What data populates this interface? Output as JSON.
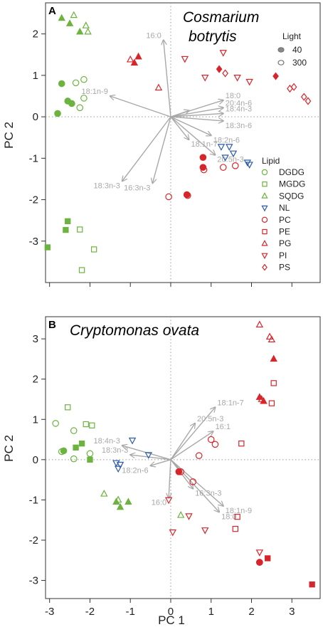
{
  "x_axis_title": "PC 1",
  "y_axis_title": "PC 2",
  "colors": {
    "green": "#6cb33f",
    "blue": "#2b5aa8",
    "red": "#d7262b",
    "arrow": "#a8a8a8",
    "grid": "#999999"
  },
  "light_legend": {
    "title": "Light",
    "items": [
      {
        "label": "40",
        "filled": true
      },
      {
        "label": "300",
        "filled": false
      }
    ]
  },
  "lipid_legend": {
    "title": "Lipid",
    "items": [
      {
        "label": "DGDG",
        "shape": "circle",
        "color": "green"
      },
      {
        "label": "MGDG",
        "shape": "square",
        "color": "green"
      },
      {
        "label": "SQDG",
        "shape": "triangle",
        "color": "green"
      },
      {
        "label": "NL",
        "shape": "itriangle",
        "color": "blue"
      },
      {
        "label": "PC",
        "shape": "circle",
        "color": "red"
      },
      {
        "label": "PE",
        "shape": "square",
        "color": "red"
      },
      {
        "label": "PG",
        "shape": "triangle",
        "color": "red"
      },
      {
        "label": "PI",
        "shape": "itriangle",
        "color": "red"
      },
      {
        "label": "PS",
        "shape": "diamond",
        "color": "red"
      }
    ]
  },
  "chart_data": [
    {
      "type": "scatter",
      "panel": "A",
      "species": [
        "Cosmarium",
        "botrytis"
      ],
      "xlim": [
        -3.1,
        3.7
      ],
      "ylim": [
        -4.0,
        2.75
      ],
      "xticks": [],
      "yticks": [
        -3,
        -2,
        -1,
        0,
        1,
        2
      ],
      "loadings": [
        {
          "label": "16:0",
          "x": -0.18,
          "y": 1.85
        },
        {
          "label": "18:1n-9",
          "x": -1.5,
          "y": 0.5
        },
        {
          "label": "18:0",
          "x": 1.3,
          "y": 0.4
        },
        {
          "label": "20:4n-6",
          "x": 1.3,
          "y": 0.22
        },
        {
          "label": "18:4n-3",
          "x": 1.3,
          "y": 0.08
        },
        {
          "label": "18:3n-6",
          "x": 1.3,
          "y": -0.1
        },
        {
          "label": "18:2n-6",
          "x": 1.0,
          "y": -0.45
        },
        {
          "label": "20:5n-3",
          "x": 1.1,
          "y": -0.92
        },
        {
          "label": "18:1n-7",
          "x": 0.45,
          "y": -0.55
        },
        {
          "label": "18:3n-3",
          "x": -1.2,
          "y": -1.55
        },
        {
          "label": "16:3n-3",
          "x": -0.45,
          "y": -1.6
        },
        {
          "label": "",
          "x": 0.45,
          "y": 0.15
        }
      ],
      "points": [
        {
          "shape": "triangle",
          "color": "green",
          "filled": true,
          "x": -2.7,
          "y": 2.38
        },
        {
          "shape": "triangle",
          "color": "green",
          "filled": true,
          "x": -2.5,
          "y": 2.25
        },
        {
          "shape": "triangle",
          "color": "green",
          "filled": true,
          "x": -2.25,
          "y": 2.05
        },
        {
          "shape": "triangle",
          "color": "green",
          "filled": false,
          "x": -2.4,
          "y": 2.45
        },
        {
          "shape": "triangle",
          "color": "green",
          "filled": false,
          "x": -2.1,
          "y": 2.2
        },
        {
          "shape": "triangle",
          "color": "green",
          "filled": false,
          "x": -2.05,
          "y": 2.05
        },
        {
          "shape": "circle",
          "color": "green",
          "filled": true,
          "x": -2.7,
          "y": 0.8
        },
        {
          "shape": "circle",
          "color": "green",
          "filled": true,
          "x": -2.55,
          "y": 0.38
        },
        {
          "shape": "circle",
          "color": "green",
          "filled": true,
          "x": -2.8,
          "y": 0.08
        },
        {
          "shape": "circle",
          "color": "green",
          "filled": true,
          "x": -2.45,
          "y": 0.32
        },
        {
          "shape": "circle",
          "color": "green",
          "filled": false,
          "x": -2.35,
          "y": 0.82
        },
        {
          "shape": "circle",
          "color": "green",
          "filled": false,
          "x": -2.15,
          "y": 0.9
        },
        {
          "shape": "circle",
          "color": "green",
          "filled": false,
          "x": -2.15,
          "y": 0.45
        },
        {
          "shape": "circle",
          "color": "green",
          "filled": false,
          "x": -2.25,
          "y": 0.22
        },
        {
          "shape": "square",
          "color": "green",
          "filled": true,
          "x": -2.55,
          "y": -2.52
        },
        {
          "shape": "square",
          "color": "green",
          "filled": true,
          "x": -2.6,
          "y": -2.73
        },
        {
          "shape": "square",
          "color": "green",
          "filled": true,
          "x": -3.05,
          "y": -3.15
        },
        {
          "shape": "square",
          "color": "green",
          "filled": false,
          "x": -2.25,
          "y": -2.72
        },
        {
          "shape": "square",
          "color": "green",
          "filled": false,
          "x": -1.9,
          "y": -3.2
        },
        {
          "shape": "square",
          "color": "green",
          "filled": false,
          "x": -2.2,
          "y": -3.7
        },
        {
          "shape": "triangle",
          "color": "red",
          "filled": true,
          "x": -0.9,
          "y": 1.3
        },
        {
          "shape": "triangle",
          "color": "red",
          "filled": true,
          "x": -0.8,
          "y": 1.45
        },
        {
          "shape": "triangle",
          "color": "red",
          "filled": false,
          "x": -1.0,
          "y": 1.38
        },
        {
          "shape": "triangle",
          "color": "red",
          "filled": false,
          "x": -0.3,
          "y": 0.7
        },
        {
          "shape": "itriangle",
          "color": "red",
          "filled": false,
          "x": 0.35,
          "y": 1.4
        },
        {
          "shape": "itriangle",
          "color": "red",
          "filled": false,
          "x": 0.85,
          "y": 0.95
        },
        {
          "shape": "itriangle",
          "color": "red",
          "filled": false,
          "x": 1.3,
          "y": 1.55
        },
        {
          "shape": "itriangle",
          "color": "red",
          "filled": false,
          "x": 1.65,
          "y": 0.95
        },
        {
          "shape": "itriangle",
          "color": "red",
          "filled": false,
          "x": 1.95,
          "y": 0.85
        },
        {
          "shape": "diamond",
          "color": "red",
          "filled": true,
          "x": 1.2,
          "y": 1.15
        },
        {
          "shape": "diamond",
          "color": "red",
          "filled": false,
          "x": 1.35,
          "y": 1.05
        },
        {
          "shape": "diamond",
          "color": "red",
          "filled": true,
          "x": 2.6,
          "y": 0.98
        },
        {
          "shape": "diamond",
          "color": "red",
          "filled": false,
          "x": 2.95,
          "y": 0.68
        },
        {
          "shape": "diamond",
          "color": "red",
          "filled": false,
          "x": 3.05,
          "y": 0.72
        },
        {
          "shape": "diamond",
          "color": "red",
          "filled": false,
          "x": 3.3,
          "y": 0.48
        },
        {
          "shape": "diamond",
          "color": "red",
          "filled": false,
          "x": 3.4,
          "y": 0.38
        },
        {
          "shape": "itriangle",
          "color": "blue",
          "filled": false,
          "x": 1.25,
          "y": -0.72
        },
        {
          "shape": "itriangle",
          "color": "blue",
          "filled": false,
          "x": 1.45,
          "y": -0.72
        },
        {
          "shape": "itriangle",
          "color": "blue",
          "filled": false,
          "x": 1.55,
          "y": -0.88
        },
        {
          "shape": "itriangle",
          "color": "blue",
          "filled": false,
          "x": 1.35,
          "y": -0.98
        },
        {
          "shape": "itriangle",
          "color": "blue",
          "filled": false,
          "x": 1.9,
          "y": -1.1
        },
        {
          "shape": "itriangle",
          "color": "blue",
          "filled": false,
          "x": 1.95,
          "y": -1.15
        },
        {
          "shape": "circle",
          "color": "red",
          "filled": true,
          "x": 0.8,
          "y": -0.98
        },
        {
          "shape": "circle",
          "color": "red",
          "filled": true,
          "x": 0.8,
          "y": -1.22
        },
        {
          "shape": "circle",
          "color": "red",
          "filled": false,
          "x": 0.82,
          "y": -1.28
        },
        {
          "shape": "circle",
          "color": "red",
          "filled": false,
          "x": 1.3,
          "y": -1.22
        },
        {
          "shape": "circle",
          "color": "red",
          "filled": false,
          "x": 1.6,
          "y": -1.18
        },
        {
          "shape": "circle",
          "color": "red",
          "filled": true,
          "x": 0.4,
          "y": -1.88
        },
        {
          "shape": "circle",
          "color": "red",
          "filled": false,
          "x": 0.42,
          "y": -1.9
        },
        {
          "shape": "circle",
          "color": "red",
          "filled": false,
          "x": -0.05,
          "y": -1.93
        }
      ]
    },
    {
      "type": "scatter",
      "panel": "B",
      "species": [
        "Cryptomonas ovata"
      ],
      "xlim": [
        -3.1,
        3.7
      ],
      "ylim": [
        -3.45,
        3.55
      ],
      "xticks": [
        -3,
        -2,
        -1,
        0,
        1,
        2,
        3
      ],
      "yticks": [
        -3,
        -2,
        -1,
        0,
        1,
        2,
        3
      ],
      "loadings": [
        {
          "label": "18:1n-7",
          "x": 1.1,
          "y": 1.3
        },
        {
          "label": "20:5n-3",
          "x": 0.6,
          "y": 0.9
        },
        {
          "label": "16:1",
          "x": 1.05,
          "y": 0.7
        },
        {
          "label": "18:4n-3",
          "x": -1.2,
          "y": 0.35
        },
        {
          "label": "18:3n-3",
          "x": -1.0,
          "y": 0.12
        },
        {
          "label": "18:2n-6",
          "x": -0.5,
          "y": -0.15
        },
        {
          "label": "16:3n-3",
          "x": 0.55,
          "y": -0.72
        },
        {
          "label": "16:0",
          "x": -0.05,
          "y": -0.95
        },
        {
          "label": "18:0",
          "x": 1.2,
          "y": -1.3
        },
        {
          "label": "18:1n-9",
          "x": 1.3,
          "y": -1.15
        }
      ],
      "points": [
        {
          "shape": "circle",
          "color": "green",
          "filled": false,
          "x": -2.85,
          "y": 0.9
        },
        {
          "shape": "circle",
          "color": "green",
          "filled": false,
          "x": -2.4,
          "y": 0.72
        },
        {
          "shape": "circle",
          "color": "green",
          "filled": true,
          "x": -2.65,
          "y": 0.22
        },
        {
          "shape": "circle",
          "color": "green",
          "filled": false,
          "x": -2.7,
          "y": 0.2
        },
        {
          "shape": "circle",
          "color": "green",
          "filled": false,
          "x": -2.4,
          "y": 0.02
        },
        {
          "shape": "circle",
          "color": "green",
          "filled": false,
          "x": -2.0,
          "y": 0.15
        },
        {
          "shape": "square",
          "color": "green",
          "filled": false,
          "x": -2.55,
          "y": 1.3
        },
        {
          "shape": "square",
          "color": "green",
          "filled": false,
          "x": -2.1,
          "y": 0.88
        },
        {
          "shape": "square",
          "color": "green",
          "filled": false,
          "x": -1.95,
          "y": 0.85
        },
        {
          "shape": "square",
          "color": "green",
          "filled": true,
          "x": -2.35,
          "y": 0.3
        },
        {
          "shape": "square",
          "color": "green",
          "filled": true,
          "x": -2.2,
          "y": 0.4
        },
        {
          "shape": "square",
          "color": "green",
          "filled": true,
          "x": -2.0,
          "y": 0.0
        },
        {
          "shape": "triangle",
          "color": "green",
          "filled": false,
          "x": -1.65,
          "y": -0.85
        },
        {
          "shape": "triangle",
          "color": "green",
          "filled": false,
          "x": -1.3,
          "y": -1.0
        },
        {
          "shape": "triangle",
          "color": "green",
          "filled": true,
          "x": -1.35,
          "y": -1.05
        },
        {
          "shape": "triangle",
          "color": "green",
          "filled": true,
          "x": -1.25,
          "y": -1.18
        },
        {
          "shape": "triangle",
          "color": "green",
          "filled": true,
          "x": -1.05,
          "y": -1.05
        },
        {
          "shape": "itriangle",
          "color": "blue",
          "filled": false,
          "x": -0.95,
          "y": 0.48
        },
        {
          "shape": "itriangle",
          "color": "blue",
          "filled": false,
          "x": -1.35,
          "y": -0.08
        },
        {
          "shape": "itriangle",
          "color": "blue",
          "filled": false,
          "x": -1.25,
          "y": -0.12
        },
        {
          "shape": "itriangle",
          "color": "blue",
          "filled": false,
          "x": -1.3,
          "y": -0.22
        },
        {
          "shape": "itriangle",
          "color": "blue",
          "filled": false,
          "x": -0.55,
          "y": 0.12
        },
        {
          "shape": "triangle",
          "color": "red",
          "filled": false,
          "x": 2.2,
          "y": 3.35
        },
        {
          "shape": "triangle",
          "color": "red",
          "filled": false,
          "x": 2.45,
          "y": 3.05
        },
        {
          "shape": "triangle",
          "color": "red",
          "filled": false,
          "x": 2.5,
          "y": 2.98
        },
        {
          "shape": "triangle",
          "color": "red",
          "filled": true,
          "x": 2.55,
          "y": 2.5
        },
        {
          "shape": "triangle",
          "color": "red",
          "filled": true,
          "x": 2.2,
          "y": 1.55
        },
        {
          "shape": "triangle",
          "color": "red",
          "filled": true,
          "x": 2.3,
          "y": 1.45
        },
        {
          "shape": "triangle",
          "color": "red",
          "filled": false,
          "x": 2.25,
          "y": 1.5
        },
        {
          "shape": "square",
          "color": "red",
          "filled": false,
          "x": 2.55,
          "y": 1.9
        },
        {
          "shape": "square",
          "color": "red",
          "filled": false,
          "x": 2.5,
          "y": 1.4
        },
        {
          "shape": "square",
          "color": "red",
          "filled": false,
          "x": 1.75,
          "y": 0.4
        },
        {
          "shape": "square",
          "color": "red",
          "filled": false,
          "x": 1.65,
          "y": -1.42
        },
        {
          "shape": "square",
          "color": "red",
          "filled": false,
          "x": 1.6,
          "y": -1.72
        },
        {
          "shape": "square",
          "color": "red",
          "filled": true,
          "x": 2.4,
          "y": -2.45
        },
        {
          "shape": "square",
          "color": "red",
          "filled": true,
          "x": 3.5,
          "y": -3.1
        },
        {
          "shape": "circle",
          "color": "red",
          "filled": false,
          "x": 1.0,
          "y": 0.5
        },
        {
          "shape": "circle",
          "color": "red",
          "filled": false,
          "x": 1.1,
          "y": 0.38
        },
        {
          "shape": "circle",
          "color": "red",
          "filled": false,
          "x": 0.7,
          "y": 0.1
        },
        {
          "shape": "circle",
          "color": "red",
          "filled": true,
          "x": 0.2,
          "y": -0.3
        },
        {
          "shape": "circle",
          "color": "red",
          "filled": false,
          "x": 0.25,
          "y": -0.3
        },
        {
          "shape": "circle",
          "color": "red",
          "filled": false,
          "x": 0.55,
          "y": -0.55
        },
        {
          "shape": "circle",
          "color": "red",
          "filled": true,
          "x": 2.2,
          "y": -2.55
        },
        {
          "shape": "circle",
          "color": "red",
          "filled": false,
          "x": 2.2,
          "y": -2.55
        },
        {
          "shape": "itriangle",
          "color": "red",
          "filled": false,
          "x": -0.05,
          "y": -1.0
        },
        {
          "shape": "itriangle",
          "color": "red",
          "filled": false,
          "x": 0.05,
          "y": -1.8
        },
        {
          "shape": "itriangle",
          "color": "red",
          "filled": false,
          "x": 0.85,
          "y": -1.75
        },
        {
          "shape": "itriangle",
          "color": "red",
          "filled": false,
          "x": 2.2,
          "y": -2.3
        },
        {
          "shape": "itriangle",
          "color": "red",
          "filled": false,
          "x": 0.45,
          "y": -1.4
        },
        {
          "shape": "triangle",
          "color": "green",
          "filled": false,
          "x": 0.25,
          "y": -1.38
        }
      ]
    }
  ]
}
